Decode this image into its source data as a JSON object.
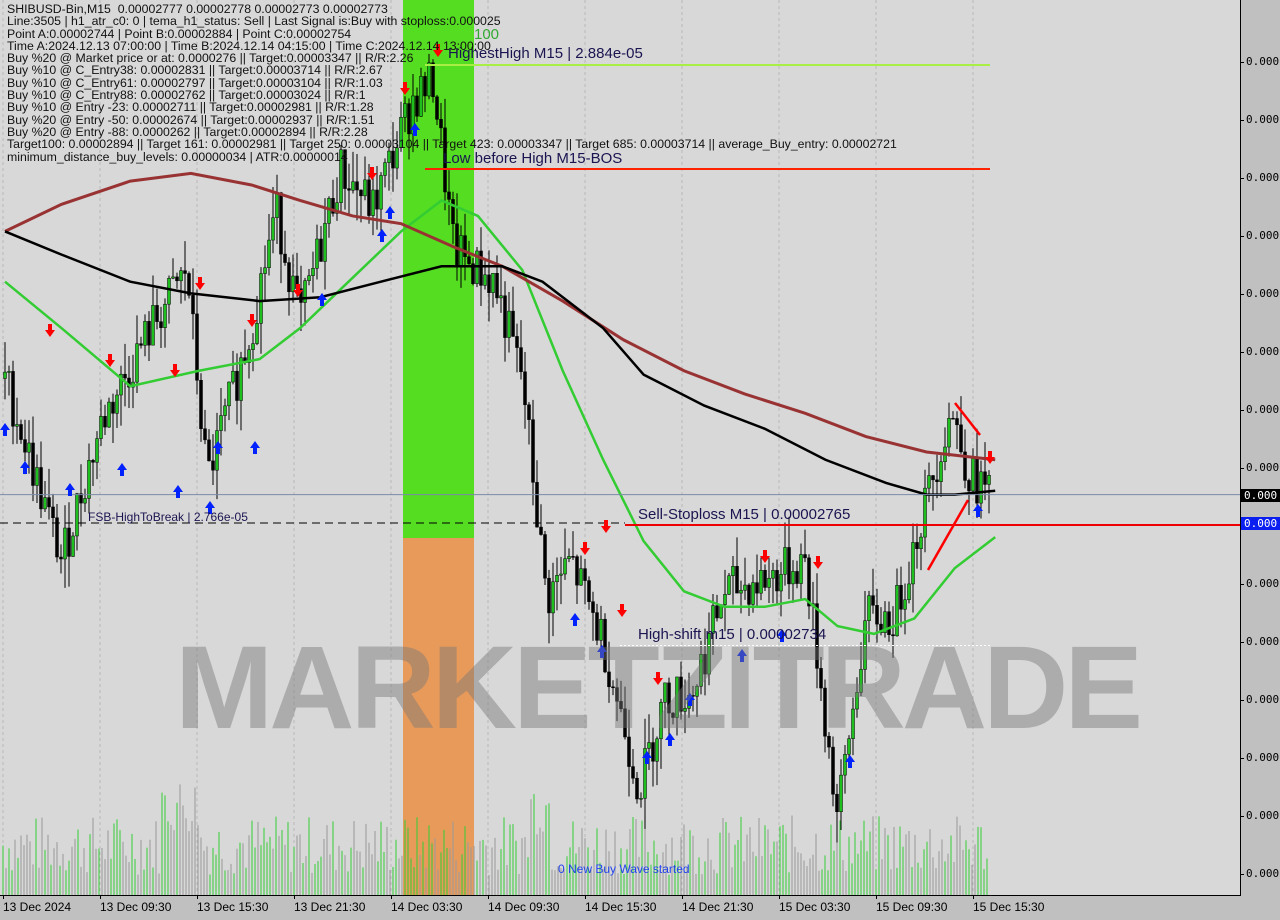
{
  "header": {
    "lines": [
      "SHIBUSD-Bin,M15  0.00002777 0.00002778 0.00002773 0.00002773",
      "Line:3505 | h1_atr_c0: 0 | tema_h1_status: Sell | Last Signal is:Buy with stoploss:0.000025",
      "Point A:0.00002744 | Point B:0.00002884 | Point C:0.00002754",
      "Time A:2024.12.13 07:00:00 | Time B:2024.12.14 04:15:00 | Time C:2024.12.14 13:00:00",
      "Buy %20 @ Market price or at: 0.0000276 || Target:0.00003347 || R/R:2.26",
      "Buy %10 @ C_Entry38: 0.00002831 || Target:0.00003714 || R/R:2.67",
      "Buy %10 @ C_Entry61: 0.00002797 || Target:0.00003104 || R/R:1.03",
      "Buy %10 @ C_Entry88: 0.00002762 || Target:0.00003024 || R/R:1",
      "Buy %10 @ Entry -23: 0.00002711 || Target:0.00002981 || R/R:1.28",
      "Buy %20 @ Entry -50: 0.00002674 || Target:0.00002937 || R/R:1.51",
      "Buy %20 @ Entry -88: 0.0000262 || Target:0.00002894 || R/R:2.28",
      "Target100: 0.00002894 || Target 161: 0.00002981 || Target 250: 0.00003104 || Target 423: 0.00003347 || Target 685: 0.00003714 || average_Buy_entry: 0.00002721",
      "minimum_distance_buy_levels: 0.00000034 | ATR:0.00000014"
    ]
  },
  "annotations": {
    "highest_high": "HighestHigh   M15 | 2.884e-05",
    "low_before_high": "Low before High   M15-BOS",
    "sell_stoploss": "Sell-Stoploss M15 | 0.00002765",
    "high_shift": "High-shift m15 | 0.00002734",
    "fsb": "FSB-HighToBreak | 2.766e-05",
    "zone_label": "100",
    "wave": "0 New Buy Wave started",
    "watermark": "MARKETZITRADE"
  },
  "colors": {
    "bull": "#1fbf1f",
    "bear": "#000000",
    "fast_ma": "#33cc33",
    "slow_ma": "#993333",
    "mid_ma": "#000000",
    "buy_arrow": "#0022ff",
    "sell_arrow": "#ff0000",
    "zone_green": "#55dd22",
    "zone_orange": "#e89a5a",
    "highest_high_line": "#a8ee44",
    "stop_line": "#ff2200"
  },
  "chart_data": {
    "type": "candlestick",
    "symbol": "SHIBUSD-Bin",
    "timeframe": "M15",
    "ylim": [
      2.675e-05,
      2.9e-05
    ],
    "price_axis_labels": [
      "0.000",
      "0.000",
      "0.000",
      "0.000",
      "0.000",
      "0.000",
      "0.000",
      "0.000",
      "0.000",
      "0.000",
      "0.000",
      "0.000",
      "0.000",
      "0.000",
      "0.000"
    ],
    "current_price_label": "0.000",
    "stop_price_label": "0.000",
    "current_price": 2.773e-05,
    "x_tick_labels": [
      "13 Dec 2024",
      "13 Dec 09:30",
      "13 Dec 15:30",
      "13 Dec 21:30",
      "14 Dec 03:30",
      "14 Dec 09:30",
      "14 Dec 15:30",
      "14 Dec 21:30",
      "15 Dec 03:30",
      "15 Dec 09:30",
      "15 Dec 15:30"
    ],
    "levels": {
      "highest_high": 2.884e-05,
      "sell_stoploss": 2.765e-05,
      "high_shift": 2.734e-05,
      "fsb_high_to_break": 2.766e-05
    },
    "close": [
      [
        "13 03:30",
        2.803e-05
      ],
      [
        "13 07:00",
        2.756e-05
      ],
      [
        "13 09:30",
        2.792e-05
      ],
      [
        "13 12:30",
        2.816e-05
      ],
      [
        "13 14:45",
        2.831e-05
      ],
      [
        "13 16:00",
        2.777e-05
      ],
      [
        "13 18:45",
        2.816e-05
      ],
      [
        "13 20:15",
        2.847e-05
      ],
      [
        "13 21:45",
        2.818e-05
      ],
      [
        "14 00:15",
        2.857e-05
      ],
      [
        "14 02:15",
        2.847e-05
      ],
      [
        "14 04:45",
        2.875e-05
      ],
      [
        "14 06:00",
        2.88e-05
      ],
      [
        "14 07:15",
        2.836e-05
      ],
      [
        "14 09:45",
        2.828e-05
      ],
      [
        "14 11:30",
        2.803e-05
      ],
      [
        "14 13:00",
        2.746e-05
      ],
      [
        "14 14:30",
        2.756e-05
      ],
      [
        "14 16:30",
        2.735e-05
      ],
      [
        "14 18:45",
        2.697e-05
      ],
      [
        "14 20:15",
        2.72e-05
      ],
      [
        "14 22:00",
        2.722e-05
      ],
      [
        "15 00:00",
        2.748e-05
      ],
      [
        "15 02:30",
        2.751e-05
      ],
      [
        "15 05:00",
        2.756e-05
      ],
      [
        "15 07:00",
        2.689e-05
      ],
      [
        "15 08:45",
        2.741e-05
      ],
      [
        "15 10:30",
        2.741e-05
      ],
      [
        "15 12:30",
        2.772e-05
      ],
      [
        "15 14:00",
        2.795e-05
      ],
      [
        "15 15:15",
        2.777e-05
      ],
      [
        "15 16:45",
        2.773e-05
      ]
    ],
    "series": [
      {
        "color": "#33cc33",
        "values": [
          [
            "13 03:30",
            2.828e-05
          ],
          [
            "13 07:00",
            2.816e-05
          ],
          [
            "13 11:15",
            2.801e-05
          ],
          [
            "13 15:30",
            2.805e-05
          ],
          [
            "13 19:15",
            2.808e-05
          ],
          [
            "13 21:45",
            2.816e-05
          ],
          [
            "14 00:15",
            2.826e-05
          ],
          [
            "14 04:00",
            2.841e-05
          ],
          [
            "14 06:30",
            2.849e-05
          ],
          [
            "14 08:45",
            2.845e-05
          ],
          [
            "14 11:30",
            2.831e-05
          ],
          [
            "14 14:00",
            2.805e-05
          ],
          [
            "14 16:30",
            2.782e-05
          ],
          [
            "14 19:00",
            2.761e-05
          ],
          [
            "14 21:30",
            2.748e-05
          ],
          [
            "15 00:00",
            2.744e-05
          ],
          [
            "15 02:30",
            2.744e-05
          ],
          [
            "15 05:00",
            2.746e-05
          ],
          [
            "15 07:00",
            2.739e-05
          ],
          [
            "15 09:15",
            2.737e-05
          ],
          [
            "15 11:45",
            2.741e-05
          ],
          [
            "15 14:15",
            2.754e-05
          ],
          [
            "15 16:45",
            2.762e-05
          ]
        ]
      },
      {
        "color": "#993333",
        "values": [
          [
            "13 03:30",
            2.841e-05
          ],
          [
            "13 07:00",
            2.848e-05
          ],
          [
            "13 11:15",
            2.854e-05
          ],
          [
            "13 15:00",
            2.856e-05
          ],
          [
            "13 18:45",
            2.853e-05
          ],
          [
            "13 21:45",
            2.849e-05
          ],
          [
            "14 01:00",
            2.845e-05
          ],
          [
            "14 04:00",
            2.843e-05
          ],
          [
            "14 07:15",
            2.837e-05
          ],
          [
            "14 10:15",
            2.832e-05
          ],
          [
            "14 14:00",
            2.823e-05
          ],
          [
            "14 17:45",
            2.813e-05
          ],
          [
            "14 21:30",
            2.805e-05
          ],
          [
            "15 01:15",
            2.799e-05
          ],
          [
            "15 05:00",
            2.794e-05
          ],
          [
            "15 08:45",
            2.788e-05
          ],
          [
            "15 12:30",
            2.784e-05
          ],
          [
            "15 16:45",
            2.782e-05
          ]
        ]
      },
      {
        "color": "#000000",
        "values": [
          [
            "13 03:30",
            2.841e-05
          ],
          [
            "13 07:00",
            2.835e-05
          ],
          [
            "13 11:15",
            2.828e-05
          ],
          [
            "13 15:00",
            2.825e-05
          ],
          [
            "13 19:15",
            2.823e-05
          ],
          [
            "13 23:00",
            2.824e-05
          ],
          [
            "14 02:45",
            2.828e-05
          ],
          [
            "14 06:30",
            2.832e-05
          ],
          [
            "14 10:15",
            2.832e-05
          ],
          [
            "14 12:45",
            2.828e-05
          ],
          [
            "14 16:30",
            2.816e-05
          ],
          [
            "14 19:00",
            2.804e-05
          ],
          [
            "14 22:45",
            2.796e-05
          ],
          [
            "15 02:30",
            2.79e-05
          ],
          [
            "15 06:15",
            2.782e-05
          ],
          [
            "15 10:00",
            2.776e-05
          ],
          [
            "15 12:30",
            2.773e-05
          ],
          [
            "15 14:15",
            2.773e-05
          ],
          [
            "15 16:45",
            2.774e-05
          ]
        ]
      }
    ]
  }
}
